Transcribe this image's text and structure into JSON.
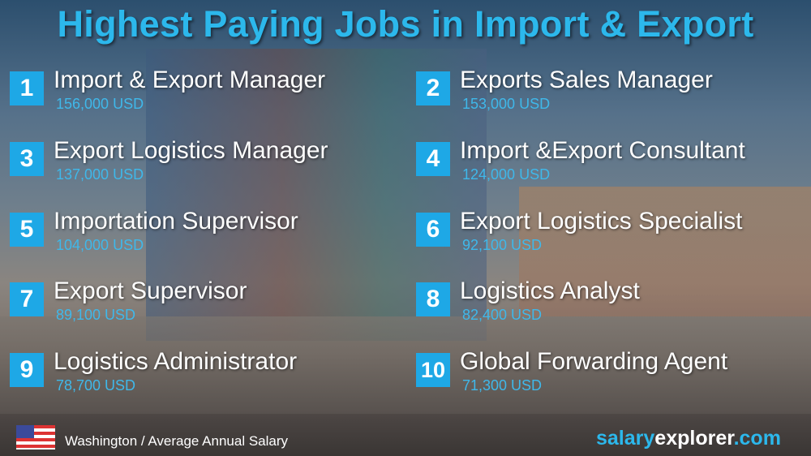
{
  "title": "Highest Paying Jobs in Import & Export",
  "accent_color": "#1ea8e6",
  "jobs": [
    {
      "rank": "1",
      "title": "Import & Export Manager",
      "salary": "156,000 USD"
    },
    {
      "rank": "2",
      "title": "Exports Sales Manager",
      "salary": "153,000 USD"
    },
    {
      "rank": "3",
      "title": "Export Logistics Manager",
      "salary": "137,000 USD"
    },
    {
      "rank": "4",
      "title": "Import &Export Consultant",
      "salary": "124,000 USD"
    },
    {
      "rank": "5",
      "title": "Importation Supervisor",
      "salary": "104,000 USD"
    },
    {
      "rank": "6",
      "title": "Export Logistics Specialist",
      "salary": "92,100 USD"
    },
    {
      "rank": "7",
      "title": "Export Supervisor",
      "salary": "89,100 USD"
    },
    {
      "rank": "8",
      "title": "Logistics Analyst",
      "salary": "82,400 USD"
    },
    {
      "rank": "9",
      "title": "Logistics Administrator",
      "salary": "78,700 USD"
    },
    {
      "rank": "10",
      "title": "Global Forwarding Agent",
      "salary": "71,300 USD"
    }
  ],
  "footer": {
    "flag_icon": "us-flag-icon",
    "location": "Washington / Average Annual Salary",
    "brand_a": "salary",
    "brand_b": "explorer",
    "brand_c": ".com"
  }
}
